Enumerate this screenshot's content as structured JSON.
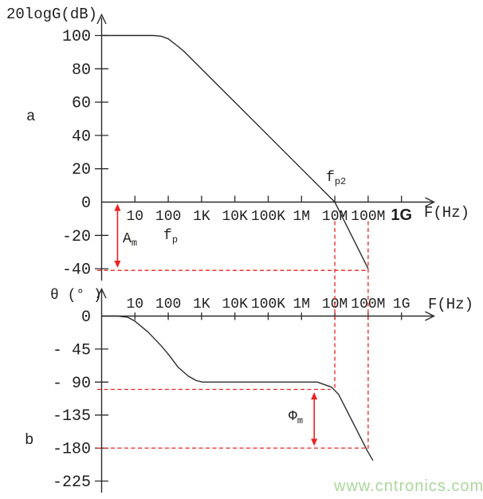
{
  "colors": {
    "ink": "#2b2b2b",
    "red": "#ee2222",
    "watermark": "#aad79b"
  },
  "watermark": "www.cntronics.com",
  "chart_data": [
    {
      "id": "magnitude",
      "type": "line",
      "panel_label": "a",
      "title": "20logG(dB)",
      "xlabel": "F(Hz)",
      "x_scale": "log",
      "xlim": [
        1,
        3000000000
      ],
      "ylim": [
        -45,
        105
      ],
      "grid": false,
      "x_ticks": [
        {
          "f": 10,
          "label": "10"
        },
        {
          "f": 100,
          "label": "100"
        },
        {
          "f": 1000,
          "label": "1K"
        },
        {
          "f": 10000,
          "label": "10K"
        },
        {
          "f": 100000,
          "label": "100K"
        },
        {
          "f": 1000000,
          "label": "1M"
        },
        {
          "f": 10000000,
          "label": "10M"
        },
        {
          "f": 100000000,
          "label": "100M"
        },
        {
          "f": 1000000000,
          "label": "1G",
          "style": "bold"
        }
      ],
      "y_ticks": [
        {
          "v": 100,
          "label": "100"
        },
        {
          "v": 80,
          "label": "80"
        },
        {
          "v": 60,
          "label": "60"
        },
        {
          "v": 40,
          "label": "40"
        },
        {
          "v": 20,
          "label": "20"
        },
        {
          "v": 0,
          "label": "0"
        },
        {
          "v": -20,
          "label": "-20"
        },
        {
          "v": -40,
          "label": "-40"
        }
      ],
      "series": [
        {
          "name": "gain_dB",
          "points": [
            [
              1,
              100
            ],
            [
              35,
              100
            ],
            [
              60,
              99.6
            ],
            [
              100,
              98
            ],
            [
              180,
              94
            ],
            [
              300,
              90.4
            ],
            [
              10000000,
              0
            ],
            [
              100000000,
              -40
            ]
          ]
        }
      ],
      "annotations": {
        "fp": {
          "main": "f",
          "sub": "p",
          "at_f": 100
        },
        "fp2": {
          "main": "f",
          "sub": "p2",
          "at_f": 10000000
        },
        "Am": {
          "main": "A",
          "sub": "m"
        }
      }
    },
    {
      "id": "phase",
      "type": "line",
      "panel_label": "b",
      "title": "θ (° )",
      "xlabel": "F(Hz)",
      "x_scale": "log",
      "xlim": [
        1,
        3000000000
      ],
      "ylim": [
        -230,
        5
      ],
      "grid": false,
      "x_ticks": [
        {
          "f": 10,
          "label": "10"
        },
        {
          "f": 100,
          "label": "100"
        },
        {
          "f": 1000,
          "label": "1K"
        },
        {
          "f": 10000,
          "label": "10K"
        },
        {
          "f": 100000,
          "label": "100K"
        },
        {
          "f": 1000000,
          "label": "1M"
        },
        {
          "f": 10000000,
          "label": "10M"
        },
        {
          "f": 100000000,
          "label": "100M"
        },
        {
          "f": 1000000000,
          "label": "1G"
        }
      ],
      "y_ticks": [
        {
          "v": 0,
          "label": "0"
        },
        {
          "v": -45,
          "label": "- 45"
        },
        {
          "v": -90,
          "label": "- 90"
        },
        {
          "v": -135,
          "label": "-135"
        },
        {
          "v": -180,
          "label": "-180"
        },
        {
          "v": -225,
          "label": "-225"
        }
      ],
      "series": [
        {
          "name": "phase_deg",
          "points": [
            [
              1,
              0
            ],
            [
              3,
              0
            ],
            [
              6,
              -1.5
            ],
            [
              10,
              -7
            ],
            [
              25,
              -22
            ],
            [
              60,
              -40
            ],
            [
              100,
              -52
            ],
            [
              200,
              -70
            ],
            [
              400,
              -82
            ],
            [
              700,
              -88
            ],
            [
              1100,
              -90
            ],
            [
              3000000,
              -90
            ],
            [
              8000000,
              -97
            ],
            [
              13000000,
              -107
            ],
            [
              95000000,
              -184
            ],
            [
              140000000,
              -197
            ]
          ]
        }
      ],
      "annotations": {
        "phim": {
          "main": "Φ",
          "sub": "m"
        }
      }
    }
  ],
  "red_guides": [
    {
      "type": "h",
      "panel": "magnitude",
      "value": -41,
      "f1": 1,
      "f2": 100000000
    },
    {
      "type": "v",
      "f": 10000000,
      "top_db": -11.5,
      "bottom_deg": -100
    },
    {
      "type": "v",
      "f": 100000000,
      "top_db": -11.5,
      "bottom_deg": -182
    },
    {
      "type": "h",
      "panel": "phase",
      "value": -100,
      "f1": 1,
      "f2": 7500000
    },
    {
      "type": "h",
      "panel": "phase",
      "value": -180,
      "f1": 1,
      "f2": 80000000
    }
  ],
  "red_arrows": [
    {
      "name": "gain-margin",
      "panel": "magnitude",
      "f": 3,
      "from": -1,
      "to": -39.5
    },
    {
      "name": "phase-margin",
      "panel": "phase",
      "f": 2400000,
      "from": -104,
      "to": -177
    }
  ]
}
